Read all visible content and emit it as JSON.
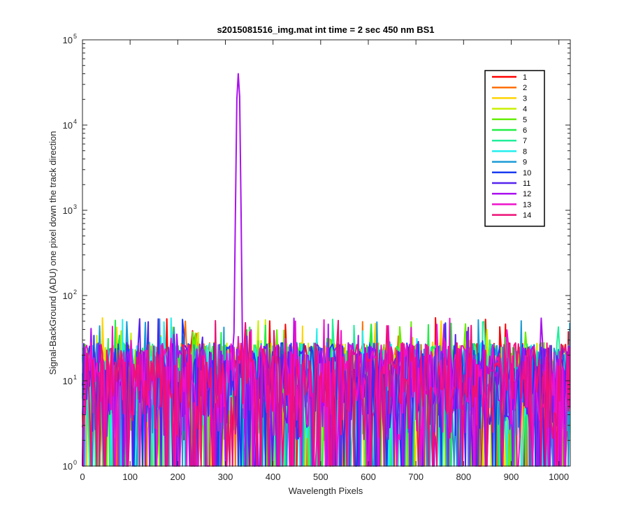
{
  "chart_data": {
    "type": "line",
    "title": "s2015081516_img.mat int time = 2 sec  450 nm BS1",
    "xlabel": "Wavelength Pixels",
    "ylabel": "Signal-BackGround (ADU) one pixel down the track direction",
    "xlim": [
      0,
      1024
    ],
    "ylim": [
      1,
      100000
    ],
    "yscale": "log",
    "xticks": [
      0,
      100,
      200,
      300,
      400,
      500,
      600,
      700,
      800,
      900,
      1000
    ],
    "xtick_labels": [
      "0",
      "100",
      "200",
      "300",
      "400",
      "500",
      "600",
      "700",
      "800",
      "900",
      "1000"
    ],
    "yticks": [
      1,
      10,
      100,
      1000,
      10000,
      100000
    ],
    "ytick_labels": [
      {
        "base": "10",
        "exp": "0"
      },
      {
        "base": "10",
        "exp": "1"
      },
      {
        "base": "10",
        "exp": "2"
      },
      {
        "base": "10",
        "exp": "3"
      },
      {
        "base": "10",
        "exp": "4"
      },
      {
        "base": "10",
        "exp": "5"
      }
    ],
    "grid": false,
    "legend_position": "top-right",
    "noise_floor": {
      "min": 1,
      "typical": 10,
      "max": 55
    },
    "peak": {
      "series": "12",
      "x": 327,
      "y": 40000,
      "x_range": [
        318,
        338
      ]
    },
    "series": [
      {
        "name": "1",
        "color": "#ff0000"
      },
      {
        "name": "2",
        "color": "#ff7000"
      },
      {
        "name": "3",
        "color": "#ffd400"
      },
      {
        "name": "4",
        "color": "#c8f000"
      },
      {
        "name": "5",
        "color": "#66ee00"
      },
      {
        "name": "6",
        "color": "#22ee44"
      },
      {
        "name": "7",
        "color": "#22ee99"
      },
      {
        "name": "8",
        "color": "#22eeee"
      },
      {
        "name": "9",
        "color": "#1a9ad6"
      },
      {
        "name": "10",
        "color": "#1a3cf0"
      },
      {
        "name": "11",
        "color": "#5522ee"
      },
      {
        "name": "12",
        "color": "#aa11ee"
      },
      {
        "name": "13",
        "color": "#ee11cc"
      },
      {
        "name": "14",
        "color": "#ee1177"
      }
    ]
  }
}
